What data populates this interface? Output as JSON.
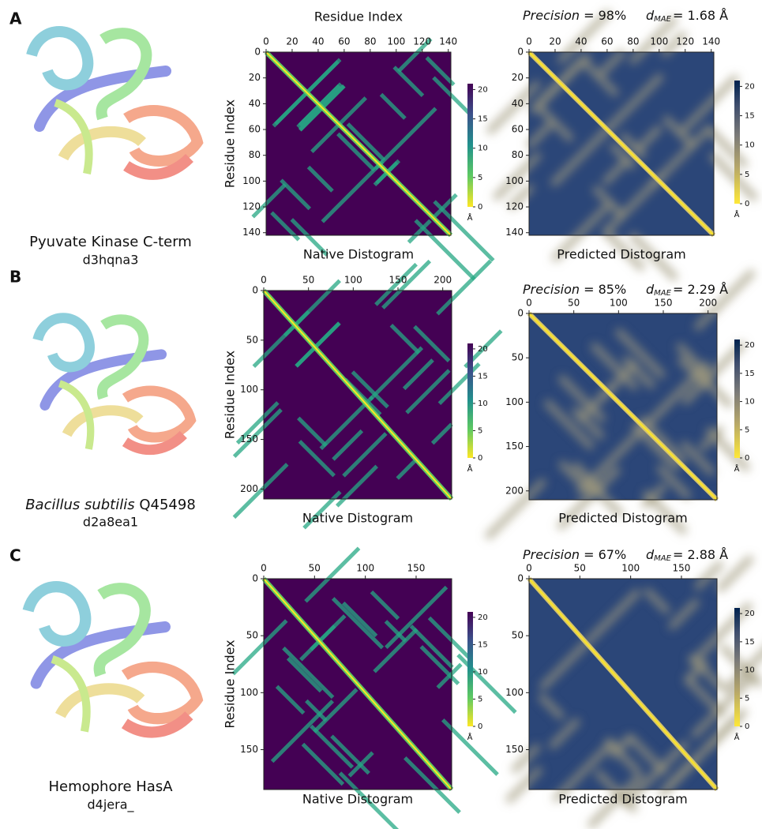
{
  "figure": {
    "axis_label": "Residue Index",
    "native_title": "Native Distogram",
    "predicted_title": "Predicted Distogram",
    "colorbar_unit": "Å",
    "colorbar_lim": [
      0,
      21
    ],
    "colorbar_ticks": [
      0,
      5,
      10,
      15,
      20
    ],
    "panels": [
      {
        "letter": "A",
        "name": "Pyuvate Kinase C-term",
        "id": "d3hqna3",
        "precision_name": "Precision",
        "precision_text": "= 98%",
        "dmae_symbol": "d",
        "dmae_subscript": "MAE",
        "dmae_text": "= 1.68 Å",
        "lim": [
          0,
          142
        ],
        "ticks": [
          0,
          20,
          40,
          60,
          80,
          100,
          120,
          140
        ]
      },
      {
        "letter": "B",
        "name_italic": "Bacillus subtilis",
        "name": "Q45498",
        "id": "d2a8ea1",
        "precision_name": "Precision",
        "precision_text": "= 85%",
        "dmae_symbol": "d",
        "dmae_subscript": "MAE",
        "dmae_text": "= 2.29 Å",
        "lim": [
          0,
          210
        ],
        "ticks": [
          0,
          50,
          100,
          150,
          200
        ]
      },
      {
        "letter": "C",
        "name": "Hemophore HasA",
        "id": "d4jera_",
        "precision_name": "Precision",
        "precision_text": "= 67%",
        "dmae_symbol": "d",
        "dmae_subscript": "MAE",
        "dmae_text": "= 2.88 Å",
        "lim": [
          0,
          185
        ],
        "ticks": [
          0,
          50,
          100,
          150
        ]
      }
    ]
  }
}
